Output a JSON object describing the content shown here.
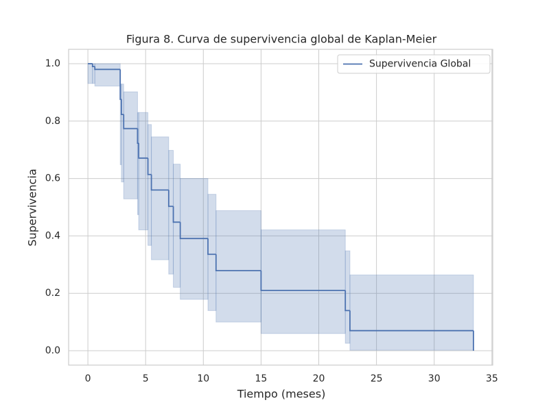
{
  "chart_data": {
    "type": "km-step",
    "title": "Figura 8. Curva de supervivencia global de Kaplan-Meier",
    "x_label": "Tiempo (meses)",
    "y_label": "Supervivencia",
    "x": [
      0,
      0.4,
      0.6,
      2.8,
      2.9,
      3.1,
      4.3,
      4.4,
      5.2,
      5.5,
      7.0,
      7.4,
      8.0,
      10.4,
      11.1,
      15.0,
      22.3,
      22.7,
      33.4
    ],
    "series": [
      {
        "name": "Supervivencia Global",
        "color": "#4c72b0",
        "values": [
          1.0,
          0.99,
          0.98,
          0.876,
          0.823,
          0.774,
          0.723,
          0.671,
          0.614,
          0.56,
          0.503,
          0.448,
          0.391,
          0.336,
          0.279,
          0.21,
          0.14,
          0.07,
          0.0
        ],
        "ci_lower": [
          0.931,
          0.931,
          0.922,
          0.648,
          0.588,
          0.529,
          0.474,
          0.421,
          0.367,
          0.317,
          0.267,
          0.221,
          0.179,
          0.14,
          0.1,
          0.06,
          0.026,
          0.002,
          0.002
        ],
        "ci_upper": [
          1.0,
          1.0,
          1.0,
          0.929,
          0.929,
          0.902,
          0.83,
          0.83,
          0.788,
          0.745,
          0.698,
          0.65,
          0.6,
          0.545,
          0.488,
          0.421,
          0.348,
          0.264,
          0.264
        ]
      }
    ],
    "xlim": [
      -1.67,
      35.07
    ],
    "ylim": [
      -0.05,
      1.05
    ],
    "xticks": [
      0,
      5,
      10,
      15,
      20,
      25,
      30,
      35
    ],
    "yticks": [
      {
        "value": 0,
        "label": "0.0"
      },
      0.2,
      0.4,
      0.6,
      0.8,
      {
        "value": 1,
        "label": "1.0"
      }
    ],
    "grid": true,
    "legend": "upper right"
  }
}
